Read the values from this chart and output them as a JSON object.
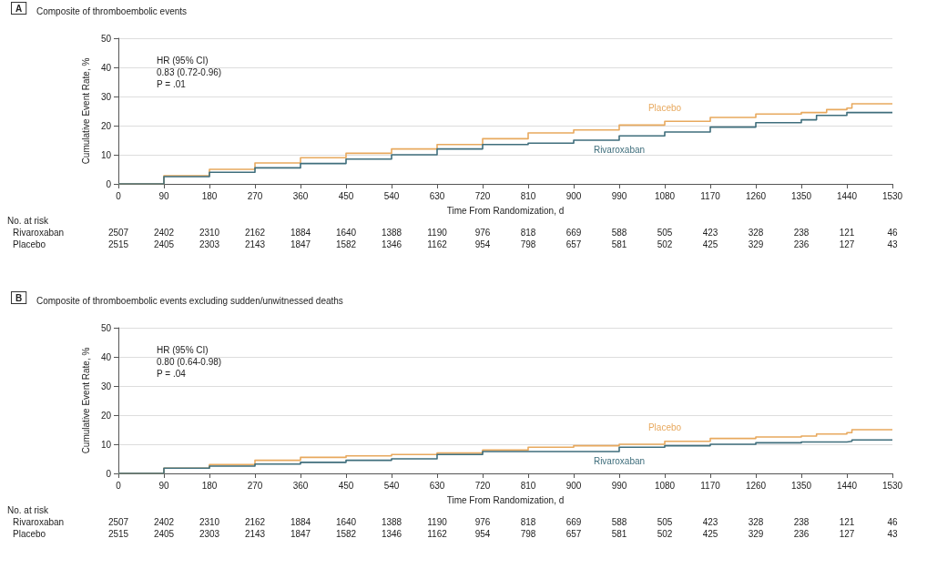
{
  "chart_data": [
    {
      "type": "step",
      "title": "Composite of thromboembolic events",
      "xlabel": "Time From Randomization, d",
      "ylabel": "Cumulative Event Rate, %",
      "annotations": [
        "A",
        "HR (95% CI)\n0.83 (0.72-0.96)\nP = .01",
        "No. at risk",
        "Rivaroxaban 2507 2402 2310 2162 1884 1640 1388 1190 976 818 669 588 505 423 328 238 121 46",
        "Placebo 2515 2405 2303 2143 1847 1582 1346 1162 954 798 657 581 502 425 329 236 127 43"
      ],
      "series": [
        {
          "name": "Placebo",
          "color": "#e8a95e",
          "x": [
            0,
            90,
            180,
            270,
            360,
            450,
            540,
            630,
            720,
            810,
            900,
            990,
            1080,
            1170,
            1260,
            1350,
            1400,
            1440,
            1450,
            1530
          ],
          "values": [
            0,
            2.8,
            5,
            7.2,
            9,
            10.5,
            12,
            13.5,
            15.5,
            17.5,
            18.5,
            20.2,
            21.5,
            22.8,
            24,
            24.5,
            25.5,
            26,
            27.5,
            27.5
          ]
        },
        {
          "name": "Rivaroxaban",
          "color": "#3f6e7c",
          "x": [
            0,
            90,
            180,
            270,
            360,
            450,
            540,
            630,
            720,
            810,
            900,
            990,
            1080,
            1170,
            1260,
            1350,
            1380,
            1440,
            1530
          ],
          "values": [
            0,
            2.5,
            4,
            5.5,
            7,
            8.5,
            10,
            12,
            13.5,
            14,
            15,
            16.5,
            17.8,
            19.5,
            21,
            22,
            23.5,
            24.5,
            24.5
          ]
        }
      ],
      "xlim": [
        0,
        1530
      ],
      "xticks": [
        0,
        90,
        180,
        270,
        360,
        450,
        540,
        630,
        720,
        810,
        900,
        990,
        1080,
        1170,
        1260,
        1350,
        1440,
        1530
      ],
      "ylim": [
        0,
        50
      ],
      "yticks": [
        0,
        10,
        20,
        30,
        40,
        50
      ],
      "grid": "y",
      "legend": false,
      "marker": "none",
      "line_style": "solid"
    },
    {
      "type": "step",
      "title": "Composite of thromboembolic events excluding sudden/unwitnessed deaths",
      "xlabel": "Time From Randomization, d",
      "ylabel": "Cumulative Event Rate, %",
      "annotations": [
        "B",
        "HR (95% CI)\n0.80 (0.64-0.98)\nP = .04",
        "No. at risk",
        "Rivaroxaban 2507 2402 2310 2162 1884 1640 1388 1190 976 818 669 588 505 423 328 238 121 46",
        "Placebo 2515 2405 2303 2143 1847 1582 1346 1162 954 798 657 581 502 425 329 236 127 43"
      ],
      "series": [
        {
          "name": "Placebo",
          "color": "#e8a95e",
          "x": [
            0,
            90,
            180,
            270,
            360,
            450,
            540,
            630,
            720,
            810,
            900,
            990,
            1080,
            1170,
            1260,
            1350,
            1380,
            1440,
            1450,
            1530
          ],
          "values": [
            0,
            1.8,
            3,
            4.5,
            5.5,
            6,
            6.5,
            7,
            8,
            9,
            9.5,
            10,
            11,
            12,
            12.5,
            12.8,
            13.5,
            14,
            15,
            15
          ]
        },
        {
          "name": "Rivaroxaban",
          "color": "#3f6e7c",
          "x": [
            0,
            90,
            180,
            270,
            360,
            450,
            540,
            630,
            720,
            810,
            900,
            990,
            1080,
            1170,
            1260,
            1350,
            1440,
            1450,
            1530
          ],
          "values": [
            0,
            1.8,
            2.5,
            3.2,
            3.8,
            4.5,
            5,
            6.5,
            7.5,
            7.5,
            7.5,
            9,
            9.5,
            10,
            10.5,
            10.8,
            11,
            11.5,
            11.5
          ]
        }
      ],
      "xlim": [
        0,
        1530
      ],
      "xticks": [
        0,
        90,
        180,
        270,
        360,
        450,
        540,
        630,
        720,
        810,
        900,
        990,
        1080,
        1170,
        1260,
        1350,
        1440,
        1530
      ],
      "ylim": [
        0,
        50
      ],
      "yticks": [
        0,
        10,
        20,
        30,
        40,
        50
      ],
      "grid": "y",
      "legend": false,
      "marker": "none",
      "line_style": "solid"
    }
  ]
}
